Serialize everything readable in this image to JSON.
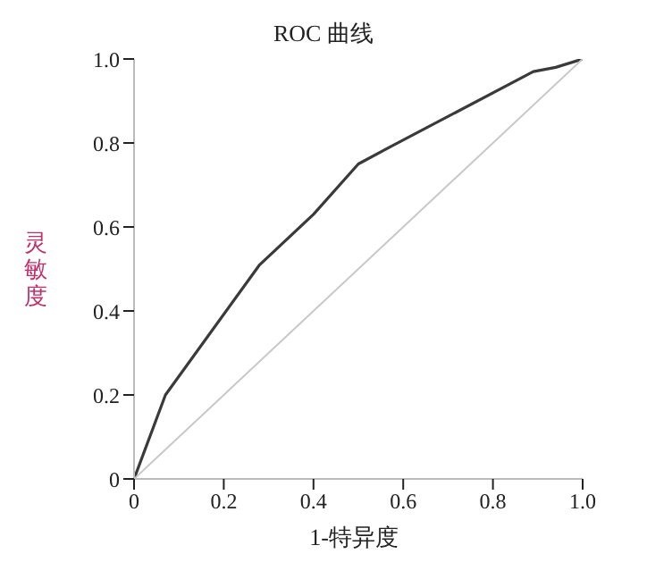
{
  "chart_data": {
    "type": "line",
    "title": "ROC 曲线",
    "xlabel": "1-特异度",
    "ylabel": "灵敏度",
    "xlim": [
      0,
      1
    ],
    "ylim": [
      0,
      1
    ],
    "xticks": [
      0,
      0.2,
      0.4,
      0.6,
      0.8,
      {
        "value": 1,
        "label": "1.0"
      }
    ],
    "yticks": [
      0,
      0.2,
      0.4,
      0.6,
      0.8,
      {
        "value": 1,
        "label": "1.0"
      }
    ],
    "grid": false,
    "legend": false,
    "marker": "none",
    "line_style": "solid",
    "series": [
      {
        "color": "#3a3a3a",
        "x": [
          0,
          0.07,
          0.28,
          0.4,
          0.5,
          0.57,
          0.89,
          0.94,
          1
        ],
        "values": [
          0,
          0.2,
          0.51,
          0.63,
          0.75,
          0.79,
          0.97,
          0.98,
          1
        ]
      },
      {
        "color": "#c8c8c8",
        "x": [
          0,
          1
        ],
        "values": [
          0,
          1
        ]
      }
    ]
  }
}
